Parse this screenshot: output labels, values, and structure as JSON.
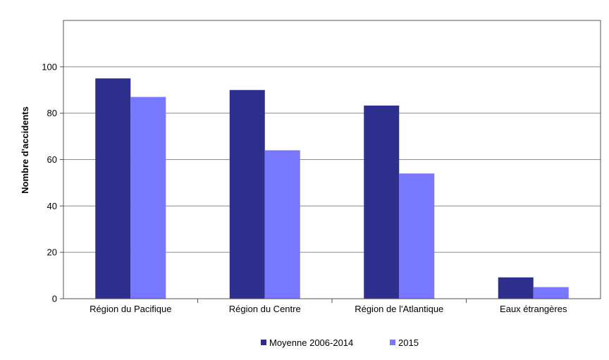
{
  "chart_data": {
    "type": "bar",
    "title": "",
    "xlabel": "",
    "ylabel": "Nombre d'accidents",
    "ylim": [
      0,
      120
    ],
    "yticks": [
      0,
      20,
      40,
      60,
      80,
      100
    ],
    "grid": true,
    "legend_position": "bottom",
    "categories": [
      "Région du Pacifique",
      "Région du Centre",
      "Région de l'Atlantique",
      "Eaux étrangères"
    ],
    "series": [
      {
        "name": "Moyenne 2006-2014",
        "color": "#2e2e8c",
        "values": [
          95,
          90,
          83.3,
          9.2
        ]
      },
      {
        "name": "2015",
        "color": "#7777ff",
        "values": [
          87,
          64,
          54,
          5
        ]
      }
    ]
  }
}
